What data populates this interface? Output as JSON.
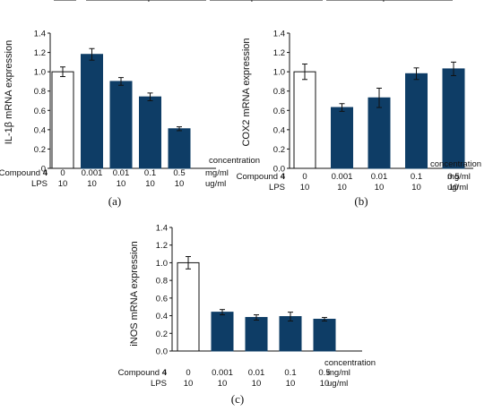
{
  "colors": {
    "treated": "#0e3d66",
    "control": "#ffffff",
    "axis": "#111111"
  },
  "chart_data": [
    {
      "type": "bar",
      "panel": "(a)",
      "ylabel": "IL-1β mRNA expression",
      "ylim": [
        0,
        1.4
      ],
      "yticks": [
        "0",
        "0.2",
        "0.4",
        "0.6",
        "0.8",
        "1.0",
        "1.2",
        "1.4"
      ],
      "values": [
        1.0,
        1.18,
        0.9,
        0.74,
        0.41
      ],
      "errors": [
        0.05,
        0.06,
        0.04,
        0.04,
        0.02
      ],
      "control_label": "LPS",
      "group_label": "Compound 4",
      "concentration_label": "concentration",
      "rows": [
        {
          "name": "Compound 4",
          "values": [
            "0",
            "0.001",
            "0.01",
            "0.1",
            "0.5"
          ],
          "unit": "mg/ml"
        },
        {
          "name": "LPS",
          "values": [
            "10",
            "10",
            "10",
            "10",
            "10"
          ],
          "unit": "ug/ml"
        }
      ]
    },
    {
      "type": "bar",
      "panel": "(b)",
      "ylabel": "COX2  mRNA expression",
      "ylim": [
        0,
        1.4
      ],
      "yticks": [
        "0.0",
        "0.2",
        "0.4",
        "0.6",
        "0.8",
        "1.0",
        "1.2",
        "1.4"
      ],
      "values": [
        1.0,
        0.63,
        0.73,
        0.98,
        1.03
      ],
      "errors": [
        0.08,
        0.04,
        0.1,
        0.06,
        0.07
      ],
      "control_label": "LPS",
      "group_label": "Compound 4",
      "concentration_label": "concentration",
      "rows": [
        {
          "name": "Compound 4",
          "values": [
            "0",
            "0.001",
            "0.01",
            "0.1",
            "0.5"
          ],
          "unit": "mg/ml"
        },
        {
          "name": "LPS",
          "values": [
            "10",
            "10",
            "10",
            "10",
            "10"
          ],
          "unit": "ug/ml"
        }
      ]
    },
    {
      "type": "bar",
      "panel": "(c)",
      "ylabel": "iNOS mRNA expression",
      "ylim": [
        0,
        1.4
      ],
      "yticks": [
        "0.0",
        "0.2",
        "0.4",
        "0.6",
        "0.8",
        "1.0",
        "1.2",
        "1.4"
      ],
      "values": [
        1.0,
        0.44,
        0.38,
        0.39,
        0.36
      ],
      "errors": [
        0.07,
        0.03,
        0.03,
        0.05,
        0.02
      ],
      "control_label": "LPS",
      "group_label": "Compound 4",
      "concentration_label": "concentration",
      "rows": [
        {
          "name": "Compound 4",
          "values": [
            "0",
            "0.001",
            "0.01",
            "0.1",
            "0.5"
          ],
          "unit": "mg/ml"
        },
        {
          "name": "LPS",
          "values": [
            "10",
            "10",
            "10",
            "10",
            "10"
          ],
          "unit": "ug/ml"
        }
      ]
    }
  ]
}
